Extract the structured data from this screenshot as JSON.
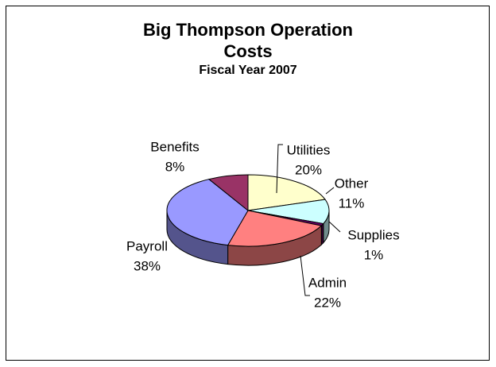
{
  "chart_data": {
    "type": "pie",
    "title": "Big Thompson Operation Costs",
    "subtitle": "Fiscal Year 2007",
    "categories": [
      "Utilities",
      "Other",
      "Supplies",
      "Admin",
      "Payroll",
      "Benefits"
    ],
    "values": [
      20,
      11,
      1,
      22,
      38,
      8
    ],
    "value_labels": [
      "20%",
      "11%",
      "1%",
      "22%",
      "38%",
      "8%"
    ],
    "colors": [
      "#ffffcc",
      "#ccffff",
      "#660066",
      "#ff8080",
      "#9999ff",
      "#993366"
    ]
  }
}
